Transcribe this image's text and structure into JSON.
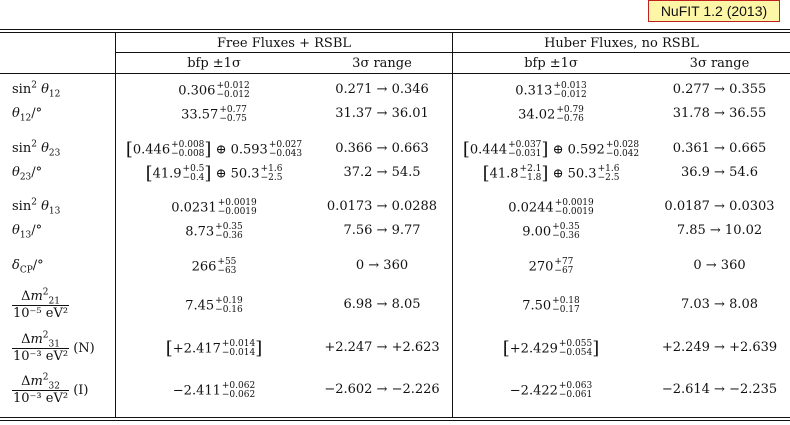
{
  "badge": "NuFIT 1.2 (2013)",
  "groups": [
    "Free Fluxes + RSBL",
    "Huber Fluxes, no RSBL"
  ],
  "subheaders": [
    "bfp ±1σ",
    "3σ range",
    "bfp ±1σ",
    "3σ range"
  ],
  "rows": [
    {
      "label": "sin² θ12",
      "c1": {
        "v": "0.306",
        "up": "+0.012",
        "dn": "−0.012"
      },
      "r1": "0.271 → 0.346",
      "c2": {
        "v": "0.313",
        "up": "+0.013",
        "dn": "−0.012"
      },
      "r2": "0.277 → 0.355"
    },
    {
      "label": "θ12/°",
      "c1": {
        "v": "33.57",
        "up": "+0.77",
        "dn": "−0.75"
      },
      "r1": "31.37 → 36.01",
      "c2": {
        "v": "34.02",
        "up": "+0.79",
        "dn": "−0.76"
      },
      "r2": "31.78 → 36.55"
    },
    {
      "label": "sin² θ23",
      "c1a": {
        "v": "0.446",
        "up": "+0.008",
        "dn": "−0.008"
      },
      "c1b": {
        "v": "0.593",
        "up": "+0.027",
        "dn": "−0.043"
      },
      "r1": "0.366 → 0.663",
      "c2a": {
        "v": "0.444",
        "up": "+0.037",
        "dn": "−0.031"
      },
      "c2b": {
        "v": "0.592",
        "up": "+0.028",
        "dn": "−0.042"
      },
      "r2": "0.361 → 0.665"
    },
    {
      "label": "θ23/°",
      "c1a": {
        "v": "41.9",
        "up": "+0.5",
        "dn": "−0.4"
      },
      "c1b": {
        "v": "50.3",
        "up": "+1.6",
        "dn": "−2.5"
      },
      "r1": "37.2 → 54.5",
      "c2a": {
        "v": "41.8",
        "up": "+2.1",
        "dn": "−1.8"
      },
      "c2b": {
        "v": "50.3",
        "up": "+1.6",
        "dn": "−2.5"
      },
      "r2": "36.9 → 54.6"
    },
    {
      "label": "sin² θ13",
      "c1": {
        "v": "0.0231",
        "up": "+0.0019",
        "dn": "−0.0019"
      },
      "r1": "0.0173 → 0.0288",
      "c2": {
        "v": "0.0244",
        "up": "+0.0019",
        "dn": "−0.0019"
      },
      "r2": "0.0187 → 0.0303"
    },
    {
      "label": "θ13/°",
      "c1": {
        "v": "8.73",
        "up": "+0.35",
        "dn": "−0.36"
      },
      "r1": "7.56 → 9.77",
      "c2": {
        "v": "9.00",
        "up": "+0.35",
        "dn": "−0.36"
      },
      "r2": "7.85 → 10.02"
    },
    {
      "label": "δCP/°",
      "c1": {
        "v": "266",
        "up": "+55",
        "dn": "−63"
      },
      "r1": "0 → 360",
      "c2": {
        "v": "270",
        "up": "+77",
        "dn": "−67"
      },
      "r2": "0 → 360"
    },
    {
      "label_num": "Δm²21",
      "label_den": "10⁻⁵ eV²",
      "label_tag": "",
      "c1": {
        "v": "7.45",
        "up": "+0.19",
        "dn": "−0.16"
      },
      "r1": "6.98 → 8.05",
      "c2": {
        "v": "7.50",
        "up": "+0.18",
        "dn": "−0.17"
      },
      "r2": "7.03 → 8.08"
    },
    {
      "label_num": "Δm²31",
      "label_den": "10⁻³ eV²",
      "label_tag": "(N)",
      "c1": {
        "v": "+2.417",
        "up": "+0.014",
        "dn": "−0.014"
      },
      "r1": "+2.247 → +2.623",
      "c2": {
        "v": "+2.429",
        "up": "+0.055",
        "dn": "−0.054"
      },
      "r2": "+2.249 → +2.639"
    },
    {
      "label_num": "Δm²32",
      "label_den": "10⁻³ eV²",
      "label_tag": "(I)",
      "c1": {
        "v": "−2.411",
        "up": "+0.062",
        "dn": "−0.062"
      },
      "r1": "−2.602 → −2.226",
      "c2": {
        "v": "−2.422",
        "up": "+0.063",
        "dn": "−0.061"
      },
      "r2": "−2.614 → −2.235"
    }
  ]
}
